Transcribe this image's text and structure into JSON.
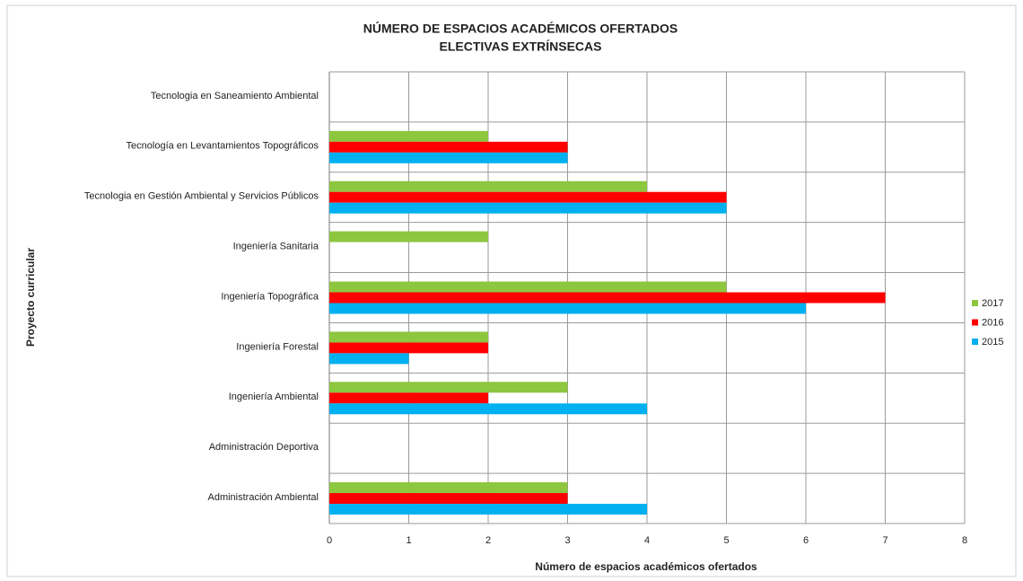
{
  "chart_data": {
    "type": "hbar",
    "title": "NÚMERO DE ESPACIOS ACADÉMICOS OFERTADOS",
    "subtitle": "ELECTIVAS EXTRÍNSECAS",
    "x_label": "Número de espacios académicos ofertados",
    "y_label": "Proyecto curricular",
    "categories": [
      "Tecnologia en Saneamiento Ambiental",
      "Tecnología en Levantamientos Topográficos",
      "Tecnologia en Gestión Ambiental y Servicios Públicos",
      "Ingeniería Sanitaria",
      "Ingeniería Topográfica",
      "Ingeniería Forestal",
      "Ingeniería Ambiental",
      "Administración Deportiva",
      "Administración Ambiental"
    ],
    "series": [
      {
        "name": "2017",
        "color": "#8dc63f",
        "values": [
          0,
          2,
          4,
          2,
          5,
          2,
          3,
          0,
          3
        ]
      },
      {
        "name": "2016",
        "color": "#ff0000",
        "values": [
          0,
          3,
          5,
          0,
          7,
          2,
          2,
          0,
          3
        ]
      },
      {
        "name": "2015",
        "color": "#00b0f0",
        "values": [
          0,
          3,
          5,
          0,
          6,
          1,
          4,
          0,
          4
        ]
      }
    ],
    "xlim": [
      0,
      8
    ],
    "xticks": [
      0,
      1,
      2,
      3,
      4,
      5,
      6,
      7,
      8
    ],
    "grid": true,
    "legend": "right"
  }
}
